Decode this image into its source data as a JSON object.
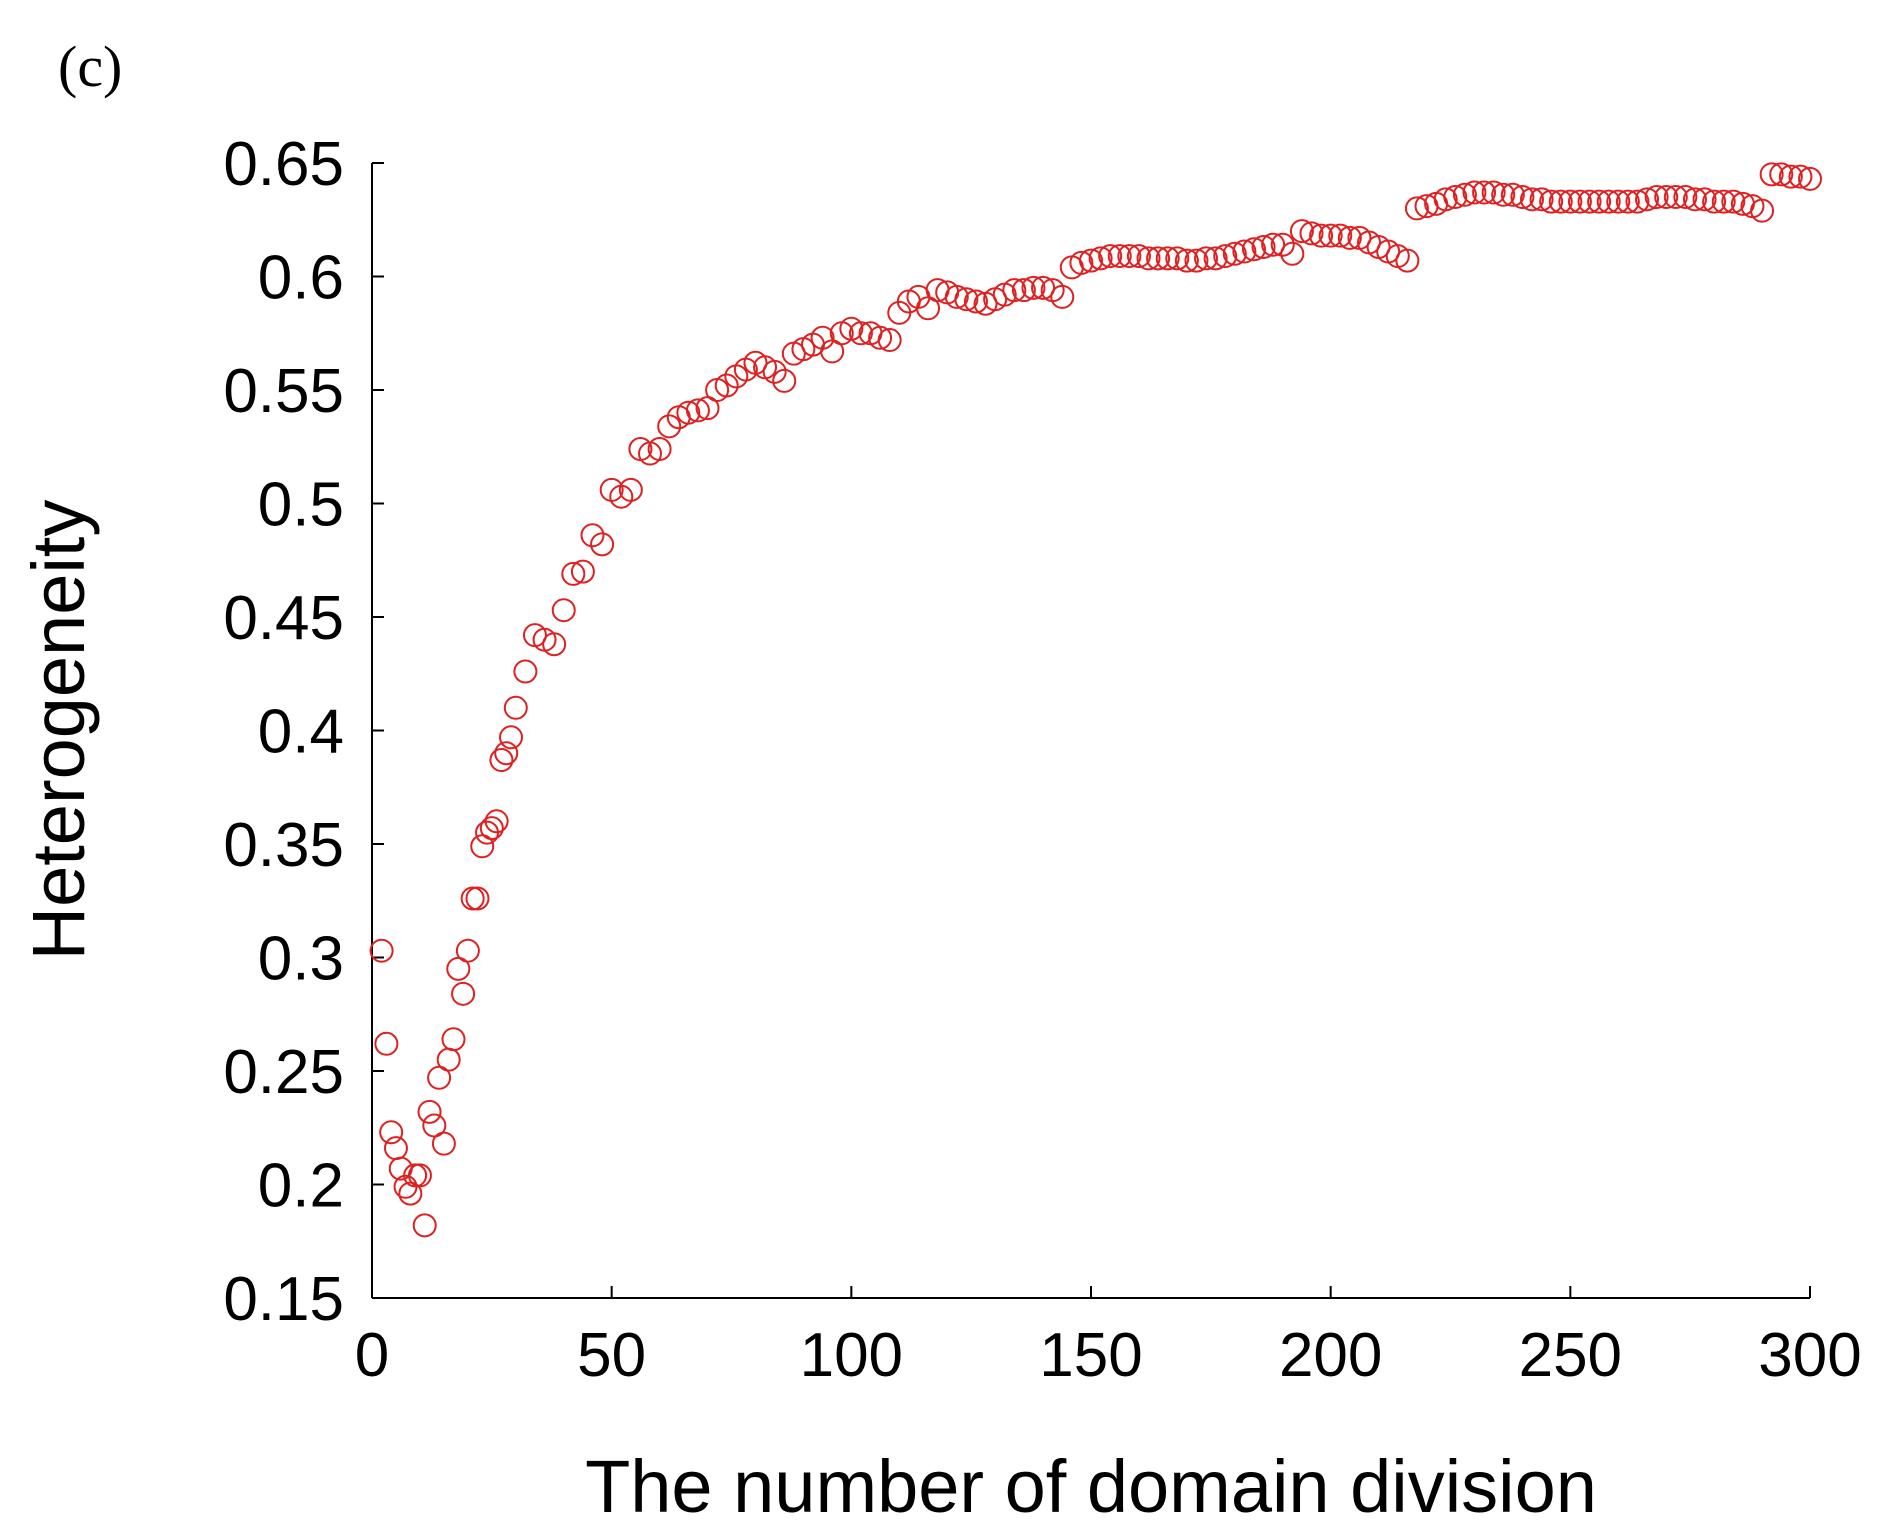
{
  "chart_data": {
    "type": "scatter",
    "panel_label": "(c)",
    "x_label": "The number of domain division",
    "y_label": "Heterogeneity",
    "color": "#e02020",
    "marker": "open-circle",
    "xlim": [
      0,
      300
    ],
    "ylim": [
      0.15,
      0.65
    ],
    "xticks": [
      0,
      50,
      100,
      150,
      200,
      250,
      300
    ],
    "yticks": [
      0.15,
      0.2,
      0.25,
      0.3,
      0.35,
      0.4,
      0.45,
      0.5,
      0.55,
      0.6,
      0.65
    ],
    "x": [
      2,
      3,
      4,
      5,
      6,
      7,
      8,
      9,
      10,
      11,
      12,
      13,
      14,
      15,
      16,
      17,
      18,
      19,
      20,
      21,
      22,
      23,
      24,
      25,
      26,
      27,
      28,
      29,
      30,
      32,
      34,
      36,
      38,
      40,
      42,
      44,
      46,
      48,
      50,
      52,
      54,
      56,
      58,
      60,
      62,
      64,
      66,
      68,
      70,
      72,
      74,
      76,
      78,
      80,
      82,
      84,
      86,
      88,
      90,
      92,
      94,
      96,
      98,
      100,
      102,
      104,
      106,
      108,
      110,
      112,
      114,
      116,
      118,
      120,
      122,
      124,
      126,
      128,
      130,
      132,
      134,
      136,
      138,
      140,
      142,
      144,
      146,
      148,
      150,
      152,
      154,
      156,
      158,
      160,
      162,
      164,
      166,
      168,
      170,
      172,
      174,
      176,
      178,
      180,
      182,
      184,
      186,
      188,
      190,
      192,
      194,
      196,
      198,
      200,
      202,
      204,
      206,
      208,
      210,
      212,
      214,
      216,
      218,
      220,
      222,
      224,
      226,
      228,
      230,
      232,
      234,
      236,
      238,
      240,
      242,
      244,
      246,
      248,
      250,
      252,
      254,
      256,
      258,
      260,
      262,
      264,
      266,
      268,
      270,
      272,
      274,
      276,
      278,
      280,
      282,
      284,
      286,
      288,
      290,
      292,
      294,
      296,
      298,
      300
    ],
    "values": [
      0.303,
      0.262,
      0.223,
      0.216,
      0.207,
      0.199,
      0.196,
      0.204,
      0.204,
      0.182,
      0.232,
      0.226,
      0.247,
      0.218,
      0.255,
      0.264,
      0.295,
      0.284,
      0.303,
      0.326,
      0.326,
      0.349,
      0.355,
      0.357,
      0.36,
      0.387,
      0.39,
      0.397,
      0.41,
      0.426,
      0.442,
      0.44,
      0.438,
      0.453,
      0.469,
      0.47,
      0.486,
      0.482,
      0.506,
      0.503,
      0.506,
      0.524,
      0.522,
      0.524,
      0.534,
      0.538,
      0.54,
      0.541,
      0.542,
      0.55,
      0.552,
      0.556,
      0.559,
      0.562,
      0.56,
      0.558,
      0.554,
      0.566,
      0.568,
      0.57,
      0.573,
      0.567,
      0.575,
      0.577,
      0.575,
      0.575,
      0.573,
      0.572,
      0.584,
      0.589,
      0.591,
      0.586,
      0.594,
      0.593,
      0.591,
      0.59,
      0.589,
      0.588,
      0.59,
      0.592,
      0.594,
      0.594,
      0.595,
      0.595,
      0.594,
      0.591,
      0.604,
      0.606,
      0.607,
      0.608,
      0.609,
      0.609,
      0.609,
      0.609,
      0.608,
      0.608,
      0.608,
      0.608,
      0.607,
      0.607,
      0.608,
      0.608,
      0.609,
      0.61,
      0.611,
      0.612,
      0.613,
      0.614,
      0.614,
      0.61,
      0.62,
      0.619,
      0.618,
      0.618,
      0.618,
      0.617,
      0.617,
      0.615,
      0.613,
      0.611,
      0.609,
      0.607,
      0.63,
      0.631,
      0.632,
      0.634,
      0.635,
      0.636,
      0.637,
      0.637,
      0.637,
      0.636,
      0.636,
      0.635,
      0.634,
      0.634,
      0.633,
      0.633,
      0.633,
      0.633,
      0.633,
      0.633,
      0.633,
      0.633,
      0.633,
      0.633,
      0.634,
      0.635,
      0.635,
      0.635,
      0.635,
      0.634,
      0.634,
      0.633,
      0.633,
      0.633,
      0.632,
      0.631,
      0.629,
      0.645,
      0.645,
      0.644,
      0.644,
      0.643
    ]
  }
}
